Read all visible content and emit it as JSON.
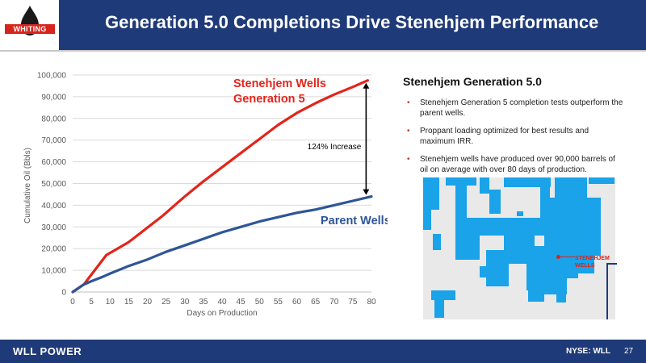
{
  "header": {
    "title": "Generation 5.0 Completions Drive Stenehjem Performance",
    "logo_text": "WHITING"
  },
  "chart_data": {
    "type": "line",
    "xlabel": "Days on Production",
    "ylabel": "Cumulative Oil (Bbls)",
    "x": [
      0,
      5,
      10,
      15,
      20,
      25,
      30,
      35,
      40,
      45,
      50,
      55,
      60,
      65,
      70,
      75,
      80
    ],
    "x_ticks": [
      "0",
      "5",
      "10",
      "15",
      "20",
      "25",
      "30",
      "35",
      "40",
      "45",
      "50",
      "55",
      "60",
      "65",
      "70",
      "75",
      "80"
    ],
    "xlim": [
      0,
      80
    ],
    "ylim": [
      0,
      100000
    ],
    "y_ticks": [
      "0",
      "10,000",
      "20,000",
      "30,000",
      "40,000",
      "50,000",
      "60,000",
      "70,000",
      "80,000",
      "90,000",
      "100,000"
    ],
    "grid": true,
    "series": [
      {
        "name": "Stenehjem Wells Generation 5",
        "label_lines": [
          "Stenehjem Wells",
          "Generation 5"
        ],
        "color": "#e3241b",
        "x": [
          0,
          3,
          5,
          7,
          9,
          12,
          15,
          18,
          21,
          24,
          27,
          30,
          35,
          40,
          45,
          50,
          55,
          60,
          65,
          70,
          75,
          79
        ],
        "values": [
          0,
          3500,
          8000,
          12500,
          17000,
          20000,
          23000,
          27000,
          31000,
          35000,
          39500,
          44000,
          51000,
          57500,
          64000,
          70500,
          77000,
          82500,
          87000,
          91000,
          94500,
          97500
        ]
      },
      {
        "name": "Parent Wells",
        "label_lines": [
          "Parent Wells"
        ],
        "color": "#2e5597",
        "x": [
          0,
          3,
          5,
          8,
          10,
          15,
          20,
          25,
          30,
          35,
          40,
          45,
          50,
          55,
          60,
          65,
          70,
          75,
          80
        ],
        "values": [
          0,
          3500,
          5000,
          7000,
          8500,
          12000,
          15000,
          18500,
          21500,
          24500,
          27500,
          30000,
          32500,
          34500,
          36500,
          38000,
          40000,
          42000,
          44000
        ]
      }
    ],
    "annotations": [
      {
        "text": "124% Increase",
        "x": 79,
        "y_from": 44000,
        "y_to": 97500
      }
    ]
  },
  "panel": {
    "title": "Stenehjem Generation 5.0",
    "bullets": [
      "Stenehjem Generation 5 completion tests outperform the parent wells.",
      "Proppant loading optimized for best results and maximum IRR.",
      "Stenehjem wells have produced over 90,000 barrels of oil on average with over 80 days of production."
    ],
    "map_label_1": "STENEHJEM",
    "map_label_2": "WELLS",
    "map_fill": "#1aa3e8"
  },
  "footer": {
    "brand": "WLL POWER",
    "ticker": "NYSE: WLL",
    "page": "27"
  }
}
